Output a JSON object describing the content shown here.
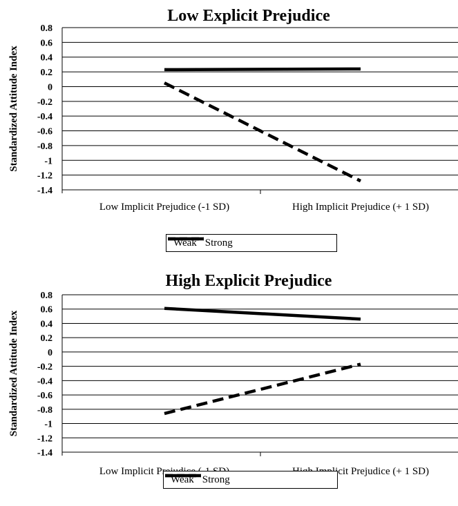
{
  "chart_data": [
    {
      "type": "line",
      "title": "Low Explicit Prejudice",
      "ylabel": "Standardized Attitude Index",
      "xlabel": "",
      "categories": [
        "Low Implicit Prejudice (-1 SD)",
        "High Implicit Prejudice (+ 1 SD)"
      ],
      "yticks": [
        "0.8",
        "0.6",
        "0.4",
        "0.2",
        "0",
        "-0.2",
        "-0.4",
        "-0.6",
        "-0.8",
        "-1",
        "-1.2",
        "-1.4"
      ],
      "ylim": [
        -1.4,
        0.8
      ],
      "grid": true,
      "legend_position": "bottom",
      "series": [
        {
          "name": "Weak",
          "style": "dashed",
          "values": [
            0.05,
            -1.28
          ]
        },
        {
          "name": "Strong",
          "style": "solid",
          "values": [
            0.23,
            0.24
          ]
        }
      ]
    },
    {
      "type": "line",
      "title": "High Explicit Prejudice",
      "ylabel": "Standardized Attitude Index",
      "xlabel": "",
      "categories": [
        "Low Implicit Prejudice (-1 SD)",
        "High Implicit Prejudice (+ 1 SD)"
      ],
      "yticks": [
        "0.8",
        "0.6",
        "0.4",
        "0.2",
        "0",
        "-0.2",
        "-0.4",
        "-0.6",
        "-0.8",
        "-1",
        "-1.2",
        "-1.4"
      ],
      "ylim": [
        -1.4,
        0.8
      ],
      "grid": true,
      "legend_position": "bottom",
      "series": [
        {
          "name": "Weak",
          "style": "dashed",
          "values": [
            -0.86,
            -0.17
          ]
        },
        {
          "name": "Strong",
          "style": "solid",
          "values": [
            0.61,
            0.46
          ]
        }
      ]
    }
  ],
  "colors": {
    "line": "#000000",
    "grid": "#000000",
    "background": "#ffffff"
  }
}
